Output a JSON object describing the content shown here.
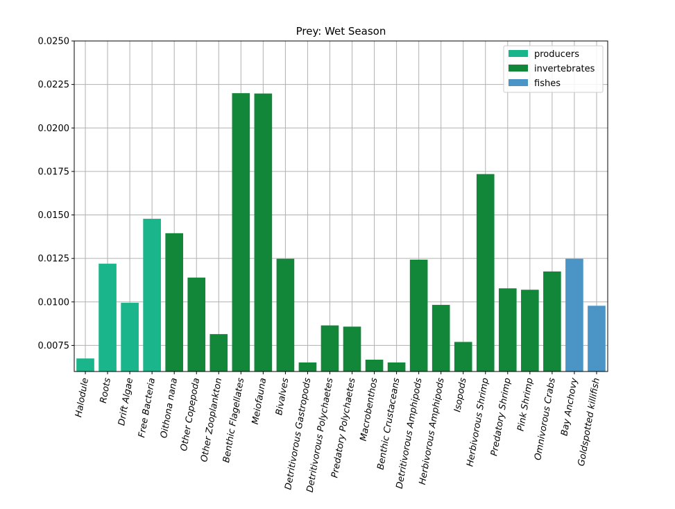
{
  "chart_data": {
    "type": "bar",
    "title": "Prey: Wet Season",
    "xlabel": "",
    "ylabel": "",
    "ylim": [
      0.006,
      0.025
    ],
    "yticks": [
      0.0075,
      0.01,
      0.0125,
      0.015,
      0.0175,
      0.02,
      0.0225,
      0.025
    ],
    "ytick_labels": [
      "0.0075",
      "0.0100",
      "0.0125",
      "0.0150",
      "0.0175",
      "0.0200",
      "0.0225",
      "0.0250"
    ],
    "grid": true,
    "legend_position": "top-right",
    "categories": [
      "Halodule",
      "Roots",
      "Drift Algae",
      "Free Bacteria",
      "Oithona nana",
      "Other Copepoda",
      "Other Zooplankton",
      "Benthic Flagellates",
      "Meiofauna",
      "Bivalves",
      "Detritivorous Gastropods",
      "Detritivorous Polychaetes",
      "Predatory Polychaetes",
      "Macrobenthos",
      "Benthic Crustaceans",
      "Detritivorous Amphipods",
      "Herbivorous Amphipods",
      "Isopods",
      "Herbivorous Shrimp",
      "Predatory Shrimp",
      "Pink Shrimp",
      "Omnivorous Crabs",
      "Bay Anchovy",
      "Goldspotted killifish"
    ],
    "values": [
      0.00675,
      0.0122,
      0.00995,
      0.01478,
      0.01395,
      0.0114,
      0.00815,
      0.022,
      0.02198,
      0.01248,
      0.00652,
      0.00865,
      0.00858,
      0.00668,
      0.00652,
      0.01243,
      0.00983,
      0.0077,
      0.01735,
      0.01078,
      0.0107,
      0.01175,
      0.01248,
      0.00978
    ],
    "groups": [
      "producers",
      "producers",
      "producers",
      "producers",
      "invertebrates",
      "invertebrates",
      "invertebrates",
      "invertebrates",
      "invertebrates",
      "invertebrates",
      "invertebrates",
      "invertebrates",
      "invertebrates",
      "invertebrates",
      "invertebrates",
      "invertebrates",
      "invertebrates",
      "invertebrates",
      "invertebrates",
      "invertebrates",
      "invertebrates",
      "invertebrates",
      "fishes",
      "fishes"
    ],
    "legend": [
      {
        "name": "producers",
        "color": "#1ab58b"
      },
      {
        "name": "invertebrates",
        "color": "#12873a"
      },
      {
        "name": "fishes",
        "color": "#4a94c6"
      }
    ],
    "grid_color": "#b0b0b0"
  }
}
